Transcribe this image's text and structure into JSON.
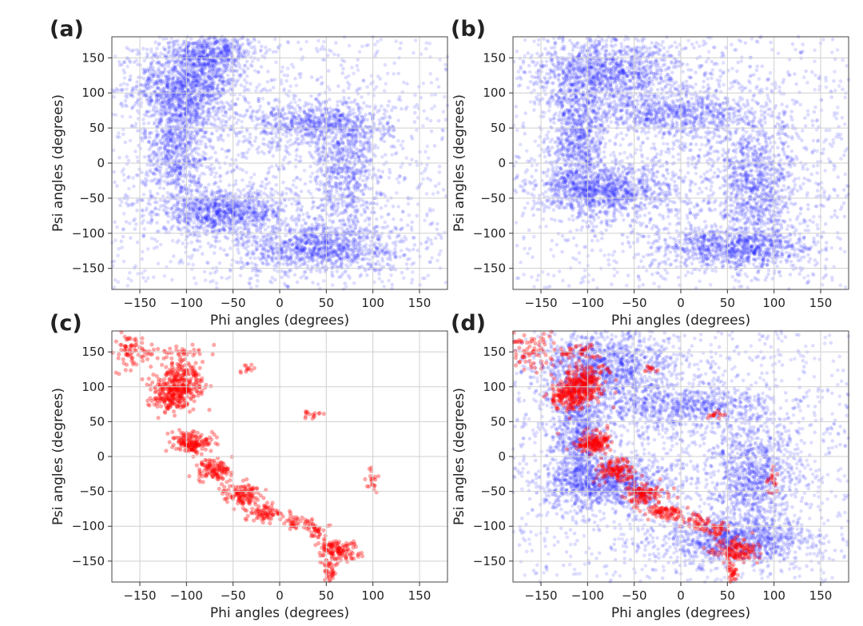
{
  "figure": {
    "panels": [
      "(a)",
      "(b)",
      "(c)",
      "(d)"
    ]
  },
  "colors": {
    "blue_points": "#1f1fff",
    "red_points": "#ff0000",
    "grid": "#cfcfcf",
    "axes": "#444444"
  },
  "chart_data": [
    {
      "panel": "(a)",
      "type": "scatter",
      "xlabel": "Phi angles (degrees)",
      "ylabel": "Psi angles (degrees)",
      "xlim": [
        -180,
        180
      ],
      "ylim": [
        -180,
        180
      ],
      "xticks": [
        -150,
        -100,
        -50,
        0,
        50,
        100,
        150
      ],
      "yticks": [
        -150,
        -100,
        -50,
        0,
        50,
        100,
        150
      ],
      "grid": true,
      "point_color": "blue",
      "density_regions": [
        {
          "center": [
            -100,
            110
          ],
          "spread": [
            28,
            30
          ],
          "weight": 0.18
        },
        {
          "center": [
            -70,
            160
          ],
          "spread": [
            22,
            18
          ],
          "weight": 0.08
        },
        {
          "center": [
            -110,
            20
          ],
          "spread": [
            18,
            45
          ],
          "weight": 0.12
        },
        {
          "center": [
            -60,
            -70
          ],
          "spread": [
            35,
            15
          ],
          "weight": 0.14
        },
        {
          "center": [
            40,
            55
          ],
          "spread": [
            40,
            15
          ],
          "weight": 0.1
        },
        {
          "center": [
            70,
            -10
          ],
          "spread": [
            18,
            45
          ],
          "weight": 0.1
        },
        {
          "center": [
            40,
            -120
          ],
          "spread": [
            45,
            18
          ],
          "weight": 0.16
        },
        {
          "center": [
            0,
            0
          ],
          "spread": [
            110,
            110
          ],
          "weight": 0.12
        }
      ]
    },
    {
      "panel": "(b)",
      "type": "scatter",
      "xlabel": "Phi angles (degrees)",
      "ylabel": "Psi angles (degrees)",
      "xlim": [
        -180,
        180
      ],
      "ylim": [
        -180,
        180
      ],
      "xticks": [
        -150,
        -100,
        -50,
        0,
        50,
        100,
        150
      ],
      "yticks": [
        -150,
        -100,
        -50,
        0,
        50,
        100,
        150
      ],
      "grid": true,
      "point_color": "blue",
      "density_regions": [
        {
          "center": [
            -80,
            130
          ],
          "spread": [
            40,
            25
          ],
          "weight": 0.18
        },
        {
          "center": [
            -110,
            30
          ],
          "spread": [
            15,
            45
          ],
          "weight": 0.12
        },
        {
          "center": [
            -80,
            -40
          ],
          "spread": [
            35,
            18
          ],
          "weight": 0.14
        },
        {
          "center": [
            0,
            70
          ],
          "spread": [
            45,
            15
          ],
          "weight": 0.1
        },
        {
          "center": [
            80,
            -30
          ],
          "spread": [
            22,
            40
          ],
          "weight": 0.12
        },
        {
          "center": [
            60,
            -120
          ],
          "spread": [
            40,
            15
          ],
          "weight": 0.14
        },
        {
          "center": [
            0,
            0
          ],
          "spread": [
            110,
            110
          ],
          "weight": 0.2
        }
      ]
    },
    {
      "panel": "(c)",
      "type": "scatter",
      "xlabel": "Phi angles (degrees)",
      "ylabel": "Psi angles (degrees)",
      "xlim": [
        -180,
        180
      ],
      "ylim": [
        -180,
        180
      ],
      "xticks": [
        -150,
        -100,
        -50,
        0,
        50,
        100,
        150
      ],
      "yticks": [
        -150,
        -100,
        -50,
        0,
        50,
        100,
        150
      ],
      "grid": true,
      "point_color": "red",
      "clusters": [
        {
          "center": [
            -105,
            105
          ],
          "spread": [
            12,
            14
          ],
          "count": 260
        },
        {
          "center": [
            -120,
            85
          ],
          "spread": [
            12,
            10
          ],
          "count": 140
        },
        {
          "center": [
            -160,
            150
          ],
          "spread": [
            12,
            15
          ],
          "count": 80
        },
        {
          "center": [
            -110,
            150
          ],
          "spread": [
            15,
            6
          ],
          "count": 40
        },
        {
          "center": [
            -35,
            125
          ],
          "spread": [
            5,
            3
          ],
          "count": 12
        },
        {
          "center": [
            38,
            60
          ],
          "spread": [
            5,
            3
          ],
          "count": 15
        },
        {
          "center": [
            -95,
            20
          ],
          "spread": [
            10,
            8
          ],
          "count": 160
        },
        {
          "center": [
            -70,
            -20
          ],
          "spread": [
            10,
            8
          ],
          "count": 120
        },
        {
          "center": [
            -40,
            -55
          ],
          "spread": [
            10,
            8
          ],
          "count": 120
        },
        {
          "center": [
            -15,
            -80
          ],
          "spread": [
            10,
            6
          ],
          "count": 80
        },
        {
          "center": [
            20,
            -95
          ],
          "spread": [
            8,
            5
          ],
          "count": 40
        },
        {
          "center": [
            40,
            -105
          ],
          "spread": [
            6,
            6
          ],
          "count": 35
        },
        {
          "center": [
            60,
            -135
          ],
          "spread": [
            12,
            8
          ],
          "count": 130
        },
        {
          "center": [
            55,
            -165
          ],
          "spread": [
            4,
            10
          ],
          "count": 40
        },
        {
          "center": [
            100,
            -35
          ],
          "spread": [
            4,
            10
          ],
          "count": 20
        }
      ]
    },
    {
      "panel": "(d)",
      "type": "scatter",
      "xlabel": "Phi angles (degrees)",
      "ylabel": "Psi angles (degrees)",
      "xlim": [
        -180,
        180
      ],
      "ylim": [
        -180,
        180
      ],
      "xticks": [
        -150,
        -100,
        -50,
        0,
        50,
        100,
        150
      ],
      "yticks": [
        -150,
        -100,
        -50,
        0,
        50,
        100,
        150
      ],
      "grid": true,
      "series": [
        {
          "point_color": "blue",
          "overlay_of": "(b)"
        },
        {
          "point_color": "red",
          "overlay_of": "(c)"
        }
      ]
    }
  ]
}
